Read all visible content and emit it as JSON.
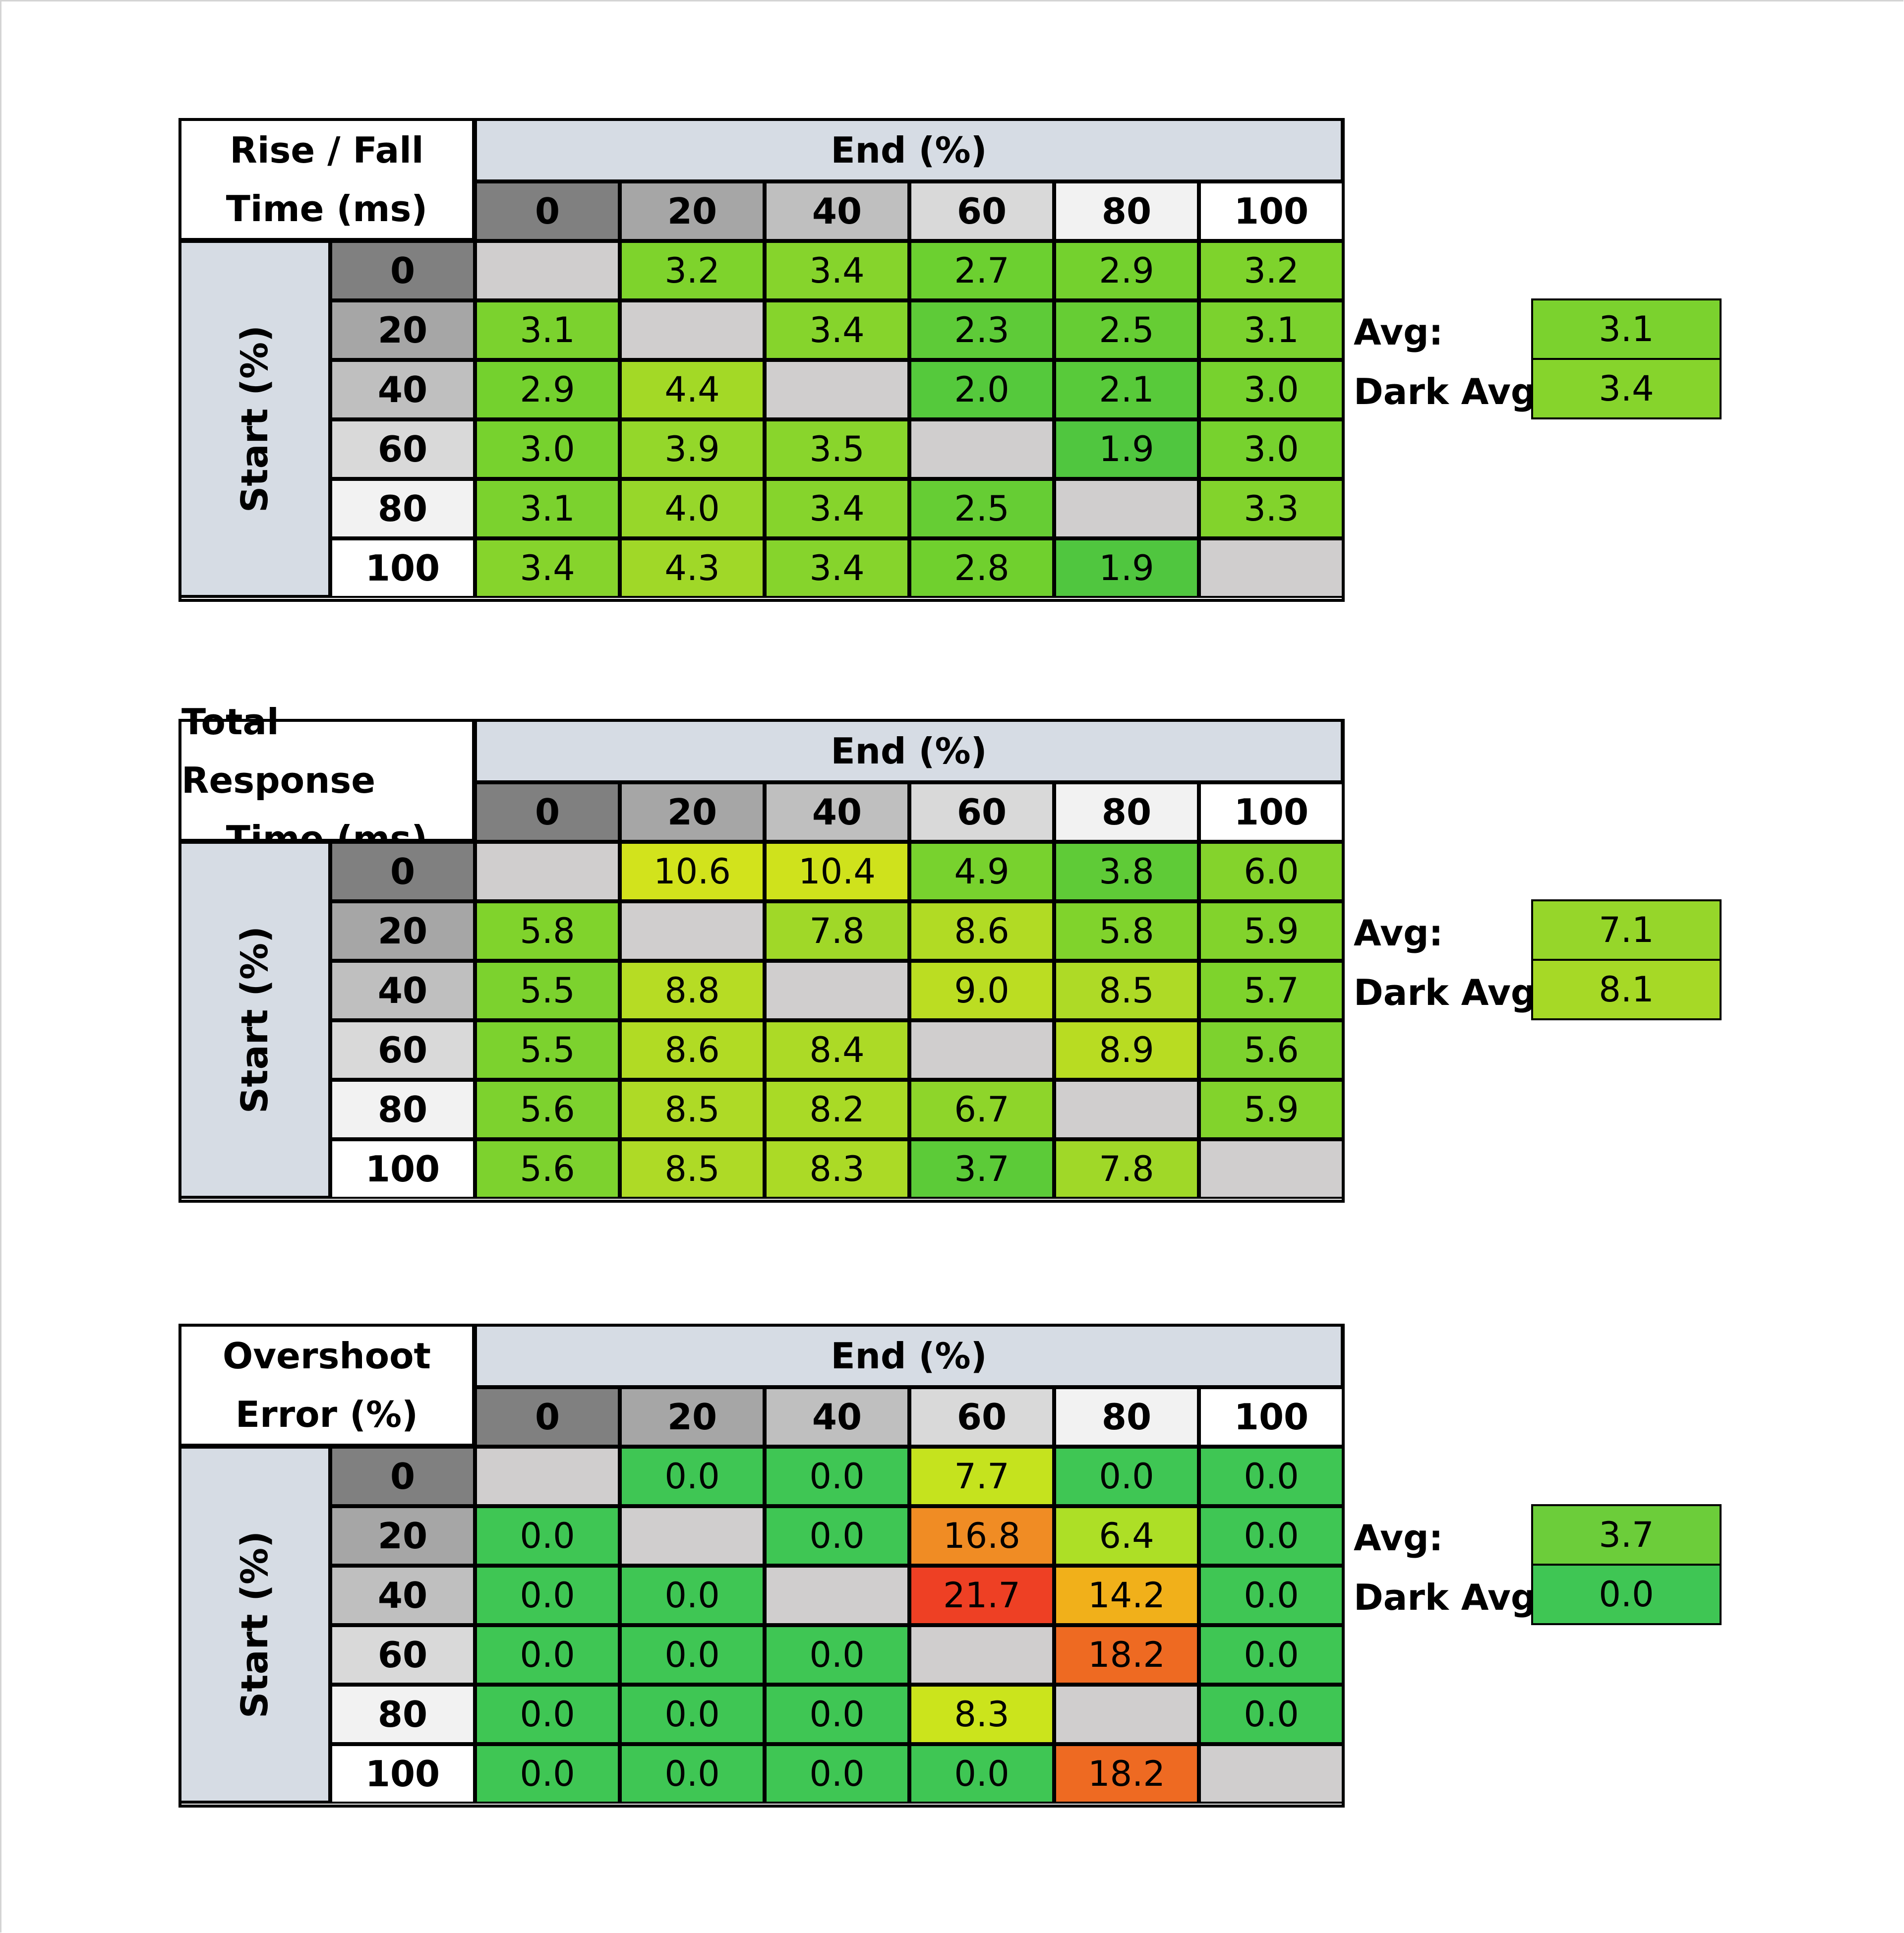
{
  "axis_labels": {
    "end": "End (%)",
    "start": "Start (%)",
    "avg": "Avg:",
    "dark_avg": "Dark Avg:"
  },
  "header_shades": [
    "#808080",
    "#a6a6a6",
    "#bfbfbf",
    "#d9d9d9",
    "#f2f2f2",
    "#ffffff"
  ],
  "chart_data": [
    {
      "type": "table",
      "title_lines": [
        "Rise / Fall",
        "Time (ms)"
      ],
      "end_levels": [
        "0",
        "20",
        "40",
        "60",
        "80",
        "100"
      ],
      "start_levels": [
        "0",
        "20",
        "40",
        "60",
        "80",
        "100"
      ],
      "rows": [
        [
          "",
          "3.2",
          "3.4",
          "2.7",
          "2.9",
          "3.2"
        ],
        [
          "3.1",
          "",
          "3.4",
          "2.3",
          "2.5",
          "3.1"
        ],
        [
          "2.9",
          "4.4",
          "",
          "2.0",
          "2.1",
          "3.0"
        ],
        [
          "3.0",
          "3.9",
          "3.5",
          "",
          "1.9",
          "3.0"
        ],
        [
          "3.1",
          "4.0",
          "3.4",
          "2.5",
          "",
          "3.3"
        ],
        [
          "3.4",
          "4.3",
          "3.4",
          "2.8",
          "1.9",
          ""
        ]
      ],
      "colors": [
        [
          "#d0cece",
          "#7ed32c",
          "#86d42c",
          "#6cd030",
          "#74d12e",
          "#7ed32c"
        ],
        [
          "#7bd22e",
          "#d0cece",
          "#86d42c",
          "#5ecb38",
          "#66cd34",
          "#7bd22e"
        ],
        [
          "#74d12e",
          "#a3d926",
          "#d0cece",
          "#55c93c",
          "#58ca3a",
          "#77d22e"
        ],
        [
          "#77d22e",
          "#94d72a",
          "#89d52c",
          "#d0cece",
          "#50c63f",
          "#77d22e"
        ],
        [
          "#7bd22e",
          "#97d72a",
          "#86d42c",
          "#66cd34",
          "#d0cece",
          "#82d32c"
        ],
        [
          "#86d42c",
          "#a0d828",
          "#86d42c",
          "#70d02e",
          "#50c63f",
          "#d0cece"
        ]
      ],
      "avg": "3.1",
      "avg_color": "#7bd22e",
      "dark_avg": "3.4",
      "dark_avg_color": "#86d42c"
    },
    {
      "type": "table",
      "title_lines": [
        "Total Response",
        "Time (ms)"
      ],
      "end_levels": [
        "0",
        "20",
        "40",
        "60",
        "80",
        "100"
      ],
      "start_levels": [
        "0",
        "20",
        "40",
        "60",
        "80",
        "100"
      ],
      "rows": [
        [
          "",
          "10.6",
          "10.4",
          "4.9",
          "3.8",
          "6.0"
        ],
        [
          "5.8",
          "",
          "7.8",
          "8.6",
          "5.8",
          "5.9"
        ],
        [
          "5.5",
          "8.8",
          "",
          "9.0",
          "8.5",
          "5.7"
        ],
        [
          "5.5",
          "8.6",
          "8.4",
          "",
          "8.9",
          "5.6"
        ],
        [
          "5.6",
          "8.5",
          "8.2",
          "6.7",
          "",
          "5.9"
        ],
        [
          "5.6",
          "8.5",
          "8.3",
          "3.7",
          "7.8",
          ""
        ]
      ],
      "colors": [
        [
          "#d0cece",
          "#d2e31c",
          "#cfe21c",
          "#78d22e",
          "#5fcb37",
          "#84d32c"
        ],
        [
          "#80d32c",
          "#d0cece",
          "#a0d828",
          "#b1db24",
          "#80d32c",
          "#82d32c"
        ],
        [
          "#7cd22e",
          "#b6dc24",
          "#d0cece",
          "#bbdd22",
          "#aeda26",
          "#7ed32c"
        ],
        [
          "#7cd22e",
          "#b1db24",
          "#acda26",
          "#d0cece",
          "#b8dc22",
          "#7dd22e"
        ],
        [
          "#7dd22e",
          "#aeda26",
          "#a9da26",
          "#8ed52a",
          "#d0cece",
          "#82d32c"
        ],
        [
          "#7dd22e",
          "#aeda26",
          "#abda26",
          "#5ccb38",
          "#a0d828",
          "#d0cece"
        ]
      ],
      "avg": "7.1",
      "avg_color": "#96d62a",
      "dark_avg": "8.1",
      "dark_avg_color": "#a6d926"
    },
    {
      "type": "table",
      "title_lines": [
        "Overshoot",
        "Error (%)"
      ],
      "end_levels": [
        "0",
        "20",
        "40",
        "60",
        "80",
        "100"
      ],
      "start_levels": [
        "0",
        "20",
        "40",
        "60",
        "80",
        "100"
      ],
      "rows": [
        [
          "",
          "0.0",
          "0.0",
          "7.7",
          "0.0",
          "0.0"
        ],
        [
          "0.0",
          "",
          "0.0",
          "16.8",
          "6.4",
          "0.0"
        ],
        [
          "0.0",
          "0.0",
          "",
          "21.7",
          "14.2",
          "0.0"
        ],
        [
          "0.0",
          "0.0",
          "0.0",
          "",
          "18.2",
          "0.0"
        ],
        [
          "0.0",
          "0.0",
          "0.0",
          "8.3",
          "",
          "0.0"
        ],
        [
          "0.0",
          "0.0",
          "0.0",
          "0.0",
          "18.2",
          ""
        ]
      ],
      "colors": [
        [
          "#d0cece",
          "#3fc654",
          "#3fc654",
          "#c5e31e",
          "#3fc654",
          "#3fc654"
        ],
        [
          "#3fc654",
          "#d0cece",
          "#3fc654",
          "#f08c24",
          "#addf26",
          "#3fc654"
        ],
        [
          "#3fc654",
          "#3fc654",
          "#d0cece",
          "#ee4024",
          "#f1b01a",
          "#3fc654"
        ],
        [
          "#3fc654",
          "#3fc654",
          "#3fc654",
          "#d0cece",
          "#ee6a22",
          "#3fc654"
        ],
        [
          "#3fc654",
          "#3fc654",
          "#3fc654",
          "#cbe41c",
          "#d0cece",
          "#3fc654"
        ],
        [
          "#3fc654",
          "#3fc654",
          "#3fc654",
          "#3fc654",
          "#ee6a22",
          "#d0cece"
        ]
      ],
      "avg": "3.7",
      "avg_color": "#6ccd3a",
      "dark_avg": "0.0",
      "dark_avg_color": "#3fc654"
    }
  ]
}
